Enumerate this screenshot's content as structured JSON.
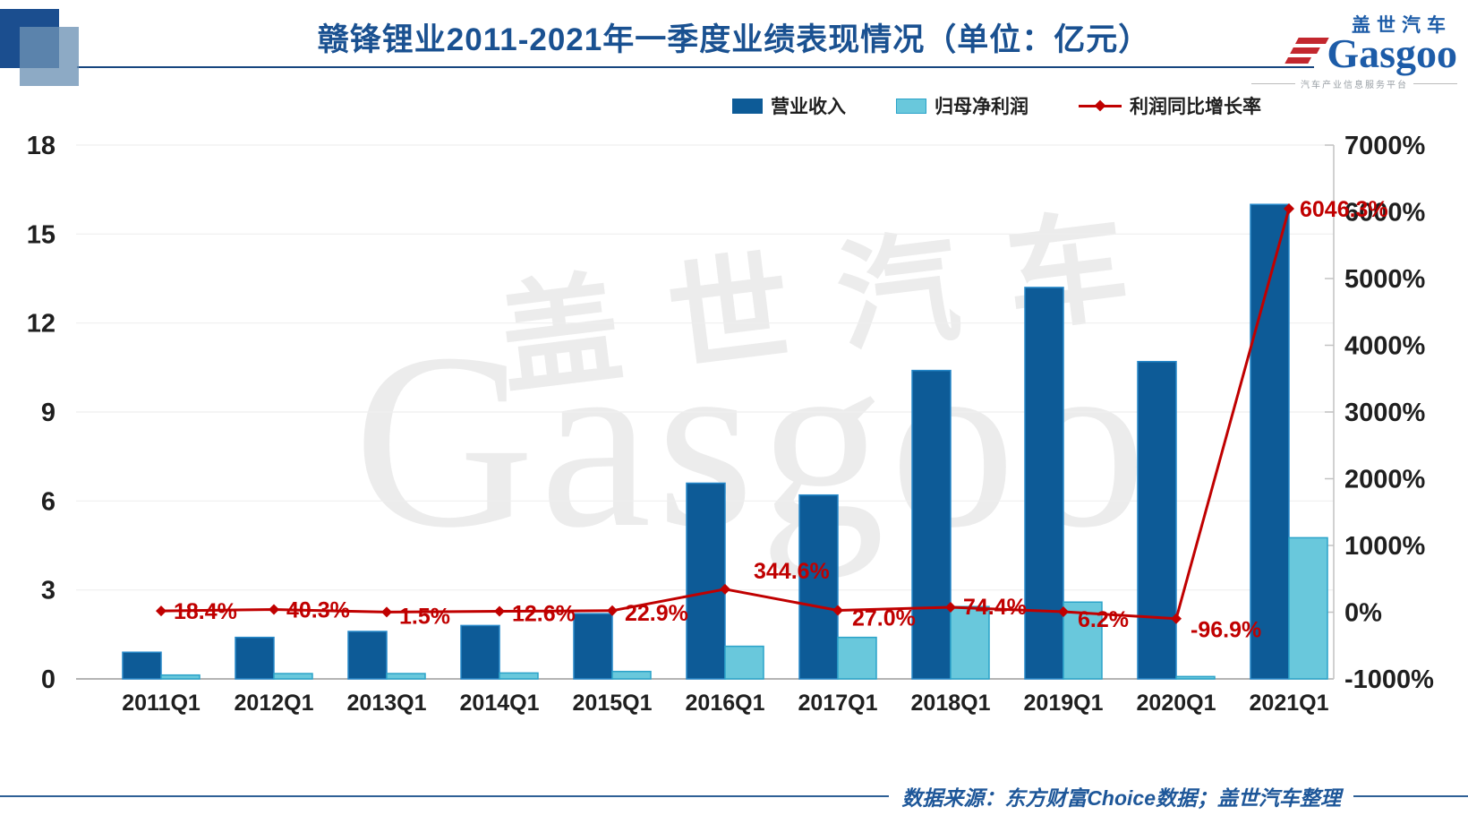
{
  "header": {
    "title": "赣锋锂业2011-2021年一季度业绩表现情况（单位：亿元）",
    "logo": {
      "brand_cn": "盖世汽车",
      "brand_en": "Gasgoo",
      "tagline": "汽车产业信息服务平台"
    }
  },
  "legend": [
    {
      "label": "营业收入"
    },
    {
      "label": "归母净利润"
    },
    {
      "label": "利润同比增长率"
    }
  ],
  "watermark": {
    "cn": "盖世汽车",
    "en": "Gasgoo"
  },
  "footer": {
    "source_note": "数据来源：东方财富Choice数据；盖世汽车整理"
  },
  "chart_data": {
    "type": "bar",
    "subtype": "bar+line combo, dual axis",
    "title": "赣锋锂业2011-2021年一季度业绩表现情况（单位：亿元）",
    "categories": [
      "2011Q1",
      "2012Q1",
      "2013Q1",
      "2014Q1",
      "2015Q1",
      "2016Q1",
      "2017Q1",
      "2018Q1",
      "2019Q1",
      "2020Q1",
      "2021Q1"
    ],
    "series": [
      {
        "name": "营业收入",
        "type": "bar",
        "axis": "left",
        "color": "#0D5B97",
        "border_color": "#2688C9",
        "values": [
          0.9,
          1.4,
          1.6,
          1.8,
          2.2,
          6.6,
          6.2,
          10.4,
          13.2,
          10.7,
          16.0
        ]
      },
      {
        "name": "归母净利润",
        "type": "bar",
        "axis": "left",
        "color": "#69C8DC",
        "border_color": "#2BA3C9",
        "values": [
          0.13,
          0.18,
          0.18,
          0.2,
          0.25,
          1.1,
          1.4,
          2.44,
          2.59,
          0.08,
          4.76
        ]
      },
      {
        "name": "利润同比增长率",
        "type": "line",
        "axis": "right",
        "color": "#C00000",
        "marker": "diamond",
        "values": [
          18.4,
          40.3,
          1.5,
          12.6,
          22.9,
          344.6,
          27.0,
          74.4,
          6.2,
          -96.9,
          6046.3
        ],
        "labels": [
          "18.4%",
          "40.3%",
          "1.5%",
          "12.6%",
          "22.9%",
          "344.6%",
          "27.0%",
          "74.4%",
          "6.2%",
          "-96.9%",
          "6046.3%"
        ]
      }
    ],
    "left_axis": {
      "min": 0,
      "max": 18,
      "step": 3,
      "ticks": [
        "0",
        "3",
        "6",
        "9",
        "12",
        "15",
        "18"
      ]
    },
    "right_axis": {
      "min": -1000,
      "max": 7000,
      "step": 1000,
      "ticks": [
        "-1000%",
        "0%",
        "1000%",
        "2000%",
        "3000%",
        "4000%",
        "5000%",
        "6000%",
        "7000%"
      ]
    },
    "grid": "horizontal, light gray",
    "legend_position": "top-right"
  }
}
